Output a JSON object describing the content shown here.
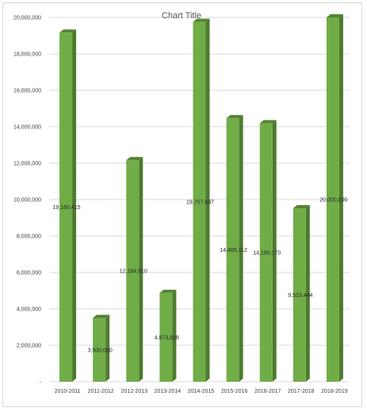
{
  "chart_data": {
    "type": "bar",
    "title": "Chart Title",
    "xlabel": "",
    "ylabel": "",
    "categories": [
      "2010-2011",
      "2011-2012",
      "2012-2013",
      "2013-2014",
      "2014-2015",
      "2015-2016",
      "2016-2017",
      "2017-2018",
      "2018-2019"
    ],
    "values": [
      19160415,
      3500000,
      12164810,
      4873818,
      19757687,
      14465112,
      14190170,
      9523444,
      20000000
    ],
    "data_labels": [
      "19,160,415",
      "3,500,000",
      "12,164,810",
      "4,873,818",
      "19,757,687",
      "14,465,112",
      "14,190,170",
      "9,523,444",
      "20,000,000"
    ],
    "y_ticks": [
      0,
      2000000,
      4000000,
      6000000,
      8000000,
      10000000,
      12000000,
      14000000,
      16000000,
      18000000,
      20000000
    ],
    "y_tick_labels": [
      "-",
      "2,000,000",
      "4,000,000",
      "6,000,000",
      "8,000,000",
      "10,000,000",
      "12,000,000",
      "14,000,000",
      "16,000,000",
      "18,000,000",
      "20,000,000"
    ],
    "ylim": [
      0,
      20000000
    ],
    "grid": true,
    "legend": "none",
    "bar_style": "3d-column",
    "colors": {
      "bar_front": "#70ad47",
      "bar_side": "#4e7a30",
      "bar_top": "#548235",
      "gridline": "#d9d9d9",
      "axis_text": "#404040",
      "title_text": "#595959"
    }
  }
}
